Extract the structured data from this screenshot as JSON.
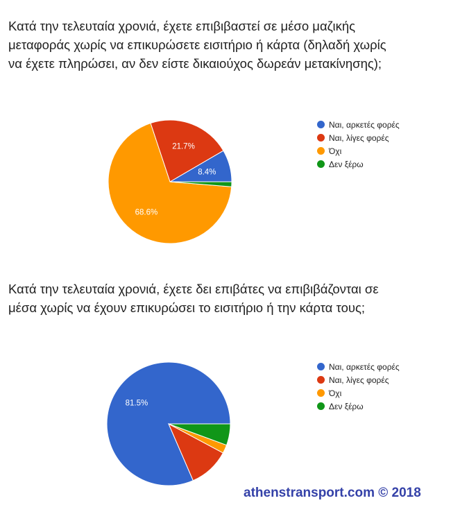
{
  "colors": {
    "series": [
      "#3366cc",
      "#dc3912",
      "#ff9900",
      "#109618"
    ],
    "credit": "#3441a8"
  },
  "chart_data": [
    {
      "type": "pie",
      "title_lines": [
        "Κατά την τελευταία χρονιά, έχετε επιβιβαστεί σε μέσο μαζικής",
        "μεταφοράς χωρίς να επικυρώσετε εισιτήριο ή κάρτα (δηλαδή χωρίς",
        "να έχετε πληρώσει, αν δεν είστε δικαιούχος δωρεάν μετακίνησης);"
      ],
      "categories": [
        "Ναι, αρκετές φορές",
        "Ναι, λίγες φορές",
        "Όχι",
        "Δεν ξέρω"
      ],
      "values": [
        8.4,
        21.7,
        68.6,
        1.3
      ],
      "data_labels": [
        "8.4%",
        "21.7%",
        "68.6%",
        ""
      ],
      "legend_position": "right"
    },
    {
      "type": "pie",
      "title_lines": [
        "Κατά την τελευταία χρονιά, έχετε δει επιβάτες να επιβιβάζονται σε",
        "μέσα χωρίς να έχουν επικυρώσει το εισιτήριο ή την κάρτα τους;"
      ],
      "categories": [
        "Ναι, αρκετές φορές",
        "Ναι, λίγες φορές",
        "Όχι",
        "Δεν ξέρω"
      ],
      "values": [
        81.5,
        10.7,
        2.2,
        5.6
      ],
      "data_labels": [
        "81.5%",
        "",
        "",
        ""
      ],
      "legend_position": "right"
    }
  ],
  "credit": "athenstransport.com © 2018"
}
